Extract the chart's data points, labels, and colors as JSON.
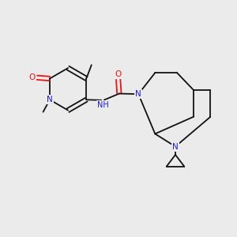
{
  "bg": "#ebebeb",
  "bc": "#111111",
  "Nc": "#1a1aee",
  "Oc": "#ee1111",
  "fs": 7.5,
  "lw": 1.3,
  "dpi": 100,
  "xlim": [
    0,
    10
  ],
  "ylim": [
    0,
    10
  ]
}
